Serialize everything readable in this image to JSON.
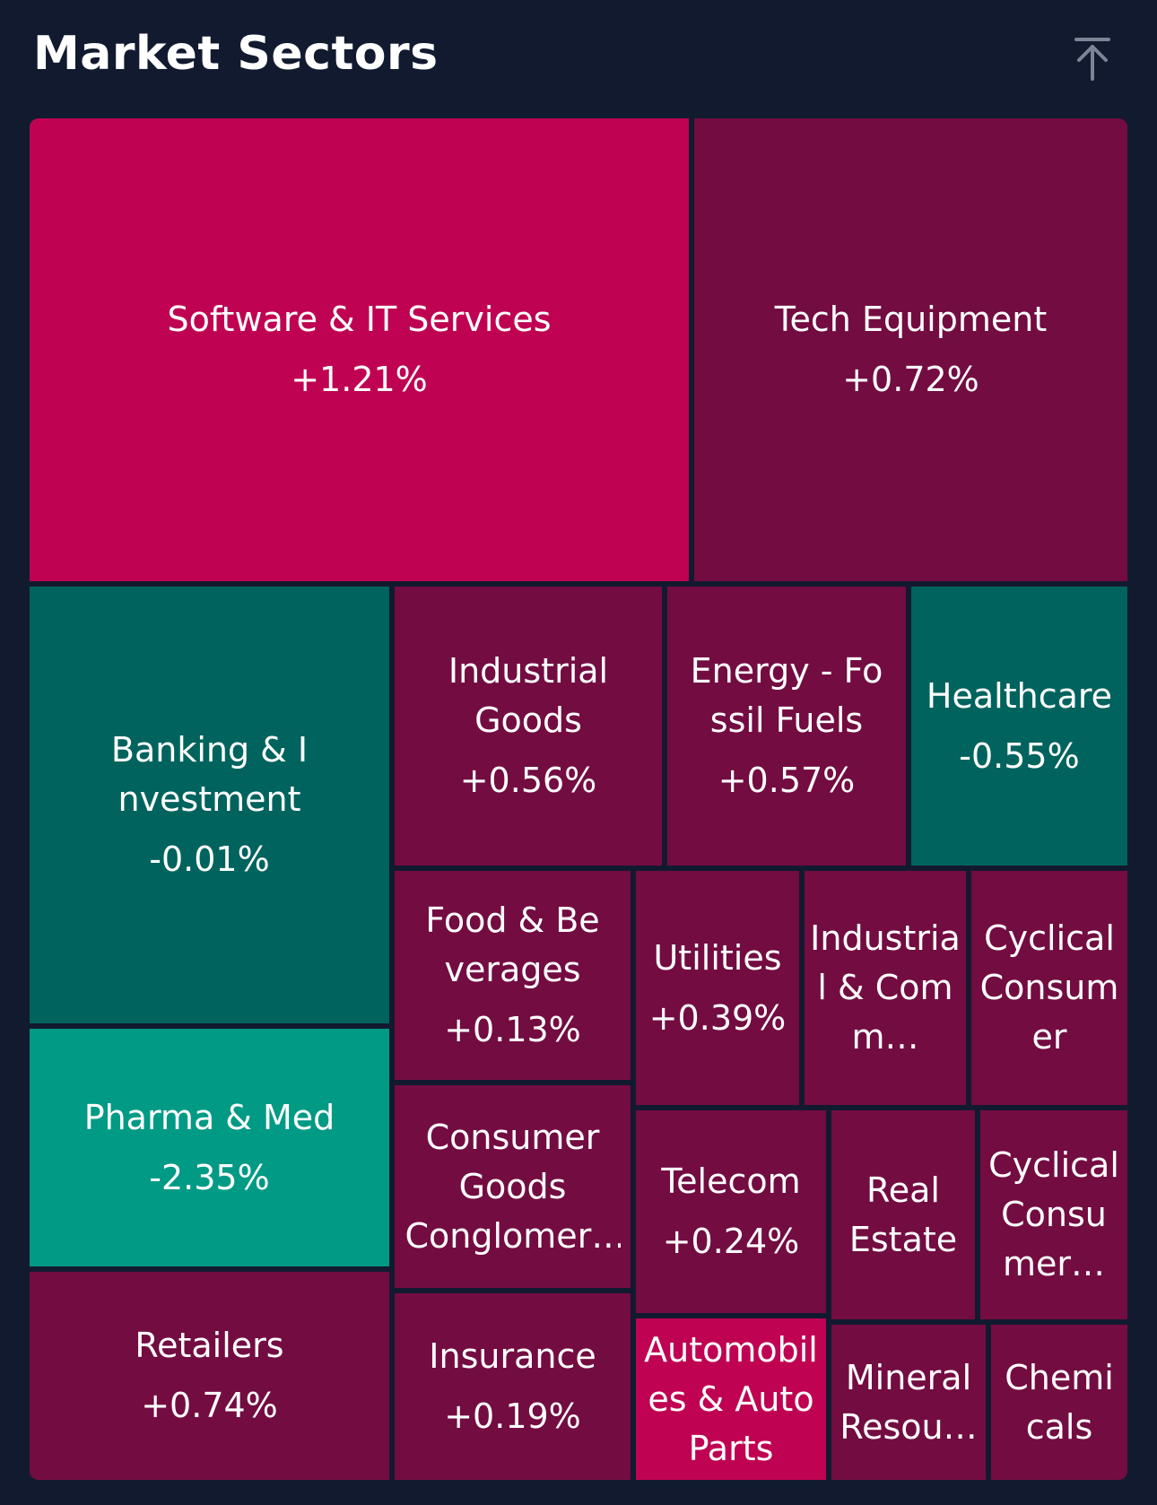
{
  "header": {
    "title": "Market Sectors",
    "collapse_icon": "arrow-up-to-line-icon"
  },
  "colors": {
    "background": "#121a30",
    "strong_up": "#bf0352",
    "up": "#730c41",
    "down": "#00635d",
    "strong_down": "#009a85"
  },
  "sectors": [
    {
      "name": "Software & IT Services",
      "change": "+1.21%"
    },
    {
      "name": "Tech Equipment",
      "change": "+0.72%"
    },
    {
      "name": "Banking & Investment",
      "change": "-0.01%"
    },
    {
      "name": "Industrial Goods",
      "change": "+0.56%"
    },
    {
      "name": "Energy - Fossil Fuels",
      "change": "+0.57%"
    },
    {
      "name": "Healthcare",
      "change": "-0.55%"
    },
    {
      "name": "Pharma & Med",
      "change": "-2.35%"
    },
    {
      "name": "Food & Beverages",
      "change": "+0.13%"
    },
    {
      "name": "Utilities",
      "change": "+0.39%"
    },
    {
      "name": "Industrial & Comm…",
      "change": ""
    },
    {
      "name": "Cyclical Consumer",
      "change": ""
    },
    {
      "name": "Consumer Goods Conglomer…",
      "change": ""
    },
    {
      "name": "Telecom",
      "change": "+0.24%"
    },
    {
      "name": "Real Estate",
      "change": ""
    },
    {
      "name": "Cyclical Consumer…",
      "change": ""
    },
    {
      "name": "Retailers",
      "change": "+0.74%"
    },
    {
      "name": "Insurance",
      "change": "+0.19%"
    },
    {
      "name": "Automobiles & Auto Parts",
      "change": ""
    },
    {
      "name": "Mineral Resou…",
      "change": ""
    },
    {
      "name": "Chemicals",
      "change": ""
    }
  ]
}
